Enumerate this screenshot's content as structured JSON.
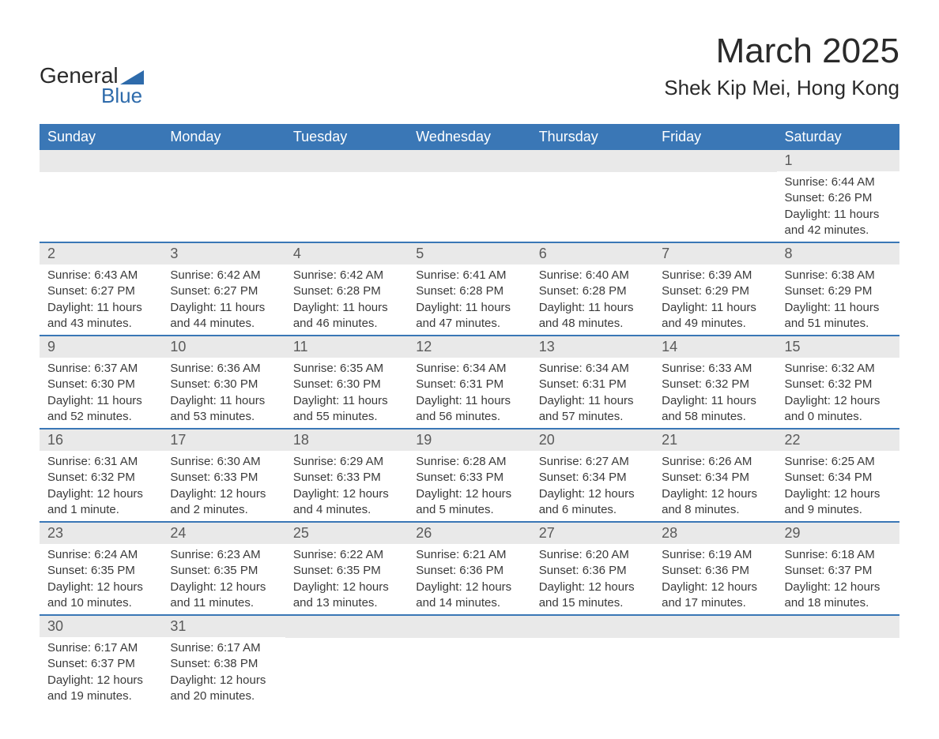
{
  "logo": {
    "text_general": "General",
    "text_blue": "Blue",
    "shape_color": "#2e6bab"
  },
  "title": "March 2025",
  "location": "Shek Kip Mei, Hong Kong",
  "colors": {
    "header_bg": "#3a77b6",
    "header_text": "#ffffff",
    "daynum_bg": "#e9e9e9",
    "daynum_text": "#5a5a5a",
    "body_text": "#3a3a3a",
    "row_border": "#3a77b6"
  },
  "weekdays": [
    "Sunday",
    "Monday",
    "Tuesday",
    "Wednesday",
    "Thursday",
    "Friday",
    "Saturday"
  ],
  "weeks": [
    [
      {
        "n": "",
        "sunrise": "",
        "sunset": "",
        "daylight1": "",
        "daylight2": ""
      },
      {
        "n": "",
        "sunrise": "",
        "sunset": "",
        "daylight1": "",
        "daylight2": ""
      },
      {
        "n": "",
        "sunrise": "",
        "sunset": "",
        "daylight1": "",
        "daylight2": ""
      },
      {
        "n": "",
        "sunrise": "",
        "sunset": "",
        "daylight1": "",
        "daylight2": ""
      },
      {
        "n": "",
        "sunrise": "",
        "sunset": "",
        "daylight1": "",
        "daylight2": ""
      },
      {
        "n": "",
        "sunrise": "",
        "sunset": "",
        "daylight1": "",
        "daylight2": ""
      },
      {
        "n": "1",
        "sunrise": "Sunrise: 6:44 AM",
        "sunset": "Sunset: 6:26 PM",
        "daylight1": "Daylight: 11 hours",
        "daylight2": "and 42 minutes."
      }
    ],
    [
      {
        "n": "2",
        "sunrise": "Sunrise: 6:43 AM",
        "sunset": "Sunset: 6:27 PM",
        "daylight1": "Daylight: 11 hours",
        "daylight2": "and 43 minutes."
      },
      {
        "n": "3",
        "sunrise": "Sunrise: 6:42 AM",
        "sunset": "Sunset: 6:27 PM",
        "daylight1": "Daylight: 11 hours",
        "daylight2": "and 44 minutes."
      },
      {
        "n": "4",
        "sunrise": "Sunrise: 6:42 AM",
        "sunset": "Sunset: 6:28 PM",
        "daylight1": "Daylight: 11 hours",
        "daylight2": "and 46 minutes."
      },
      {
        "n": "5",
        "sunrise": "Sunrise: 6:41 AM",
        "sunset": "Sunset: 6:28 PM",
        "daylight1": "Daylight: 11 hours",
        "daylight2": "and 47 minutes."
      },
      {
        "n": "6",
        "sunrise": "Sunrise: 6:40 AM",
        "sunset": "Sunset: 6:28 PM",
        "daylight1": "Daylight: 11 hours",
        "daylight2": "and 48 minutes."
      },
      {
        "n": "7",
        "sunrise": "Sunrise: 6:39 AM",
        "sunset": "Sunset: 6:29 PM",
        "daylight1": "Daylight: 11 hours",
        "daylight2": "and 49 minutes."
      },
      {
        "n": "8",
        "sunrise": "Sunrise: 6:38 AM",
        "sunset": "Sunset: 6:29 PM",
        "daylight1": "Daylight: 11 hours",
        "daylight2": "and 51 minutes."
      }
    ],
    [
      {
        "n": "9",
        "sunrise": "Sunrise: 6:37 AM",
        "sunset": "Sunset: 6:30 PM",
        "daylight1": "Daylight: 11 hours",
        "daylight2": "and 52 minutes."
      },
      {
        "n": "10",
        "sunrise": "Sunrise: 6:36 AM",
        "sunset": "Sunset: 6:30 PM",
        "daylight1": "Daylight: 11 hours",
        "daylight2": "and 53 minutes."
      },
      {
        "n": "11",
        "sunrise": "Sunrise: 6:35 AM",
        "sunset": "Sunset: 6:30 PM",
        "daylight1": "Daylight: 11 hours",
        "daylight2": "and 55 minutes."
      },
      {
        "n": "12",
        "sunrise": "Sunrise: 6:34 AM",
        "sunset": "Sunset: 6:31 PM",
        "daylight1": "Daylight: 11 hours",
        "daylight2": "and 56 minutes."
      },
      {
        "n": "13",
        "sunrise": "Sunrise: 6:34 AM",
        "sunset": "Sunset: 6:31 PM",
        "daylight1": "Daylight: 11 hours",
        "daylight2": "and 57 minutes."
      },
      {
        "n": "14",
        "sunrise": "Sunrise: 6:33 AM",
        "sunset": "Sunset: 6:32 PM",
        "daylight1": "Daylight: 11 hours",
        "daylight2": "and 58 minutes."
      },
      {
        "n": "15",
        "sunrise": "Sunrise: 6:32 AM",
        "sunset": "Sunset: 6:32 PM",
        "daylight1": "Daylight: 12 hours",
        "daylight2": "and 0 minutes."
      }
    ],
    [
      {
        "n": "16",
        "sunrise": "Sunrise: 6:31 AM",
        "sunset": "Sunset: 6:32 PM",
        "daylight1": "Daylight: 12 hours",
        "daylight2": "and 1 minute."
      },
      {
        "n": "17",
        "sunrise": "Sunrise: 6:30 AM",
        "sunset": "Sunset: 6:33 PM",
        "daylight1": "Daylight: 12 hours",
        "daylight2": "and 2 minutes."
      },
      {
        "n": "18",
        "sunrise": "Sunrise: 6:29 AM",
        "sunset": "Sunset: 6:33 PM",
        "daylight1": "Daylight: 12 hours",
        "daylight2": "and 4 minutes."
      },
      {
        "n": "19",
        "sunrise": "Sunrise: 6:28 AM",
        "sunset": "Sunset: 6:33 PM",
        "daylight1": "Daylight: 12 hours",
        "daylight2": "and 5 minutes."
      },
      {
        "n": "20",
        "sunrise": "Sunrise: 6:27 AM",
        "sunset": "Sunset: 6:34 PM",
        "daylight1": "Daylight: 12 hours",
        "daylight2": "and 6 minutes."
      },
      {
        "n": "21",
        "sunrise": "Sunrise: 6:26 AM",
        "sunset": "Sunset: 6:34 PM",
        "daylight1": "Daylight: 12 hours",
        "daylight2": "and 8 minutes."
      },
      {
        "n": "22",
        "sunrise": "Sunrise: 6:25 AM",
        "sunset": "Sunset: 6:34 PM",
        "daylight1": "Daylight: 12 hours",
        "daylight2": "and 9 minutes."
      }
    ],
    [
      {
        "n": "23",
        "sunrise": "Sunrise: 6:24 AM",
        "sunset": "Sunset: 6:35 PM",
        "daylight1": "Daylight: 12 hours",
        "daylight2": "and 10 minutes."
      },
      {
        "n": "24",
        "sunrise": "Sunrise: 6:23 AM",
        "sunset": "Sunset: 6:35 PM",
        "daylight1": "Daylight: 12 hours",
        "daylight2": "and 11 minutes."
      },
      {
        "n": "25",
        "sunrise": "Sunrise: 6:22 AM",
        "sunset": "Sunset: 6:35 PM",
        "daylight1": "Daylight: 12 hours",
        "daylight2": "and 13 minutes."
      },
      {
        "n": "26",
        "sunrise": "Sunrise: 6:21 AM",
        "sunset": "Sunset: 6:36 PM",
        "daylight1": "Daylight: 12 hours",
        "daylight2": "and 14 minutes."
      },
      {
        "n": "27",
        "sunrise": "Sunrise: 6:20 AM",
        "sunset": "Sunset: 6:36 PM",
        "daylight1": "Daylight: 12 hours",
        "daylight2": "and 15 minutes."
      },
      {
        "n": "28",
        "sunrise": "Sunrise: 6:19 AM",
        "sunset": "Sunset: 6:36 PM",
        "daylight1": "Daylight: 12 hours",
        "daylight2": "and 17 minutes."
      },
      {
        "n": "29",
        "sunrise": "Sunrise: 6:18 AM",
        "sunset": "Sunset: 6:37 PM",
        "daylight1": "Daylight: 12 hours",
        "daylight2": "and 18 minutes."
      }
    ],
    [
      {
        "n": "30",
        "sunrise": "Sunrise: 6:17 AM",
        "sunset": "Sunset: 6:37 PM",
        "daylight1": "Daylight: 12 hours",
        "daylight2": "and 19 minutes."
      },
      {
        "n": "31",
        "sunrise": "Sunrise: 6:17 AM",
        "sunset": "Sunset: 6:38 PM",
        "daylight1": "Daylight: 12 hours",
        "daylight2": "and 20 minutes."
      },
      {
        "n": "",
        "sunrise": "",
        "sunset": "",
        "daylight1": "",
        "daylight2": ""
      },
      {
        "n": "",
        "sunrise": "",
        "sunset": "",
        "daylight1": "",
        "daylight2": ""
      },
      {
        "n": "",
        "sunrise": "",
        "sunset": "",
        "daylight1": "",
        "daylight2": ""
      },
      {
        "n": "",
        "sunrise": "",
        "sunset": "",
        "daylight1": "",
        "daylight2": ""
      },
      {
        "n": "",
        "sunrise": "",
        "sunset": "",
        "daylight1": "",
        "daylight2": ""
      }
    ]
  ]
}
